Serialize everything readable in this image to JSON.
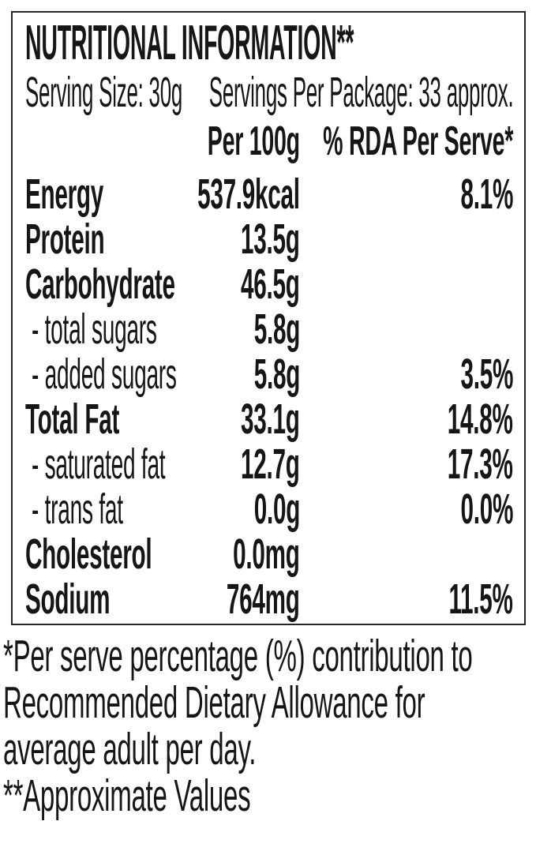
{
  "nutrition_label": {
    "title": "NUTRITIONAL INFORMATION**",
    "serving": {
      "size": "Serving Size: 30g",
      "per_package": "Servings Per Package: 33 approx."
    },
    "columns": {
      "per_100g": "Per 100g",
      "rda_per_serve": "% RDA Per Serve*"
    },
    "rows": [
      {
        "name": "Energy",
        "per_100g": "537.9kcal",
        "rda_per_serve": "8.1%"
      },
      {
        "name": "Protein",
        "per_100g": "13.5g",
        "rda_per_serve": ""
      },
      {
        "name": "Carbohydrate",
        "per_100g": "46.5g",
        "rda_per_serve": ""
      },
      {
        "name": "- total sugars",
        "per_100g": "5.8g",
        "rda_per_serve": ""
      },
      {
        "name": "- added sugars",
        "per_100g": "5.8g",
        "rda_per_serve": "3.5%"
      },
      {
        "name": "Total Fat",
        "per_100g": "33.1g",
        "rda_per_serve": "14.8%"
      },
      {
        "name": "- saturated fat",
        "per_100g": "12.7g",
        "rda_per_serve": "17.3%"
      },
      {
        "name": "- trans fat",
        "per_100g": "0.0g",
        "rda_per_serve": "0.0%"
      },
      {
        "name": "Cholesterol",
        "per_100g": "0.0mg",
        "rda_per_serve": ""
      },
      {
        "name": "Sodium",
        "per_100g": "764mg",
        "rda_per_serve": "11.5%"
      }
    ],
    "footnotes": {
      "lines": [
        "*Per serve percentage (%) contribution to",
        "Recommended Dietary Allowance for",
        "average adult per day.",
        "**Approximate Values"
      ]
    },
    "colors": {
      "text": "#161616",
      "border": "#262626",
      "background": "#ffffff"
    }
  }
}
